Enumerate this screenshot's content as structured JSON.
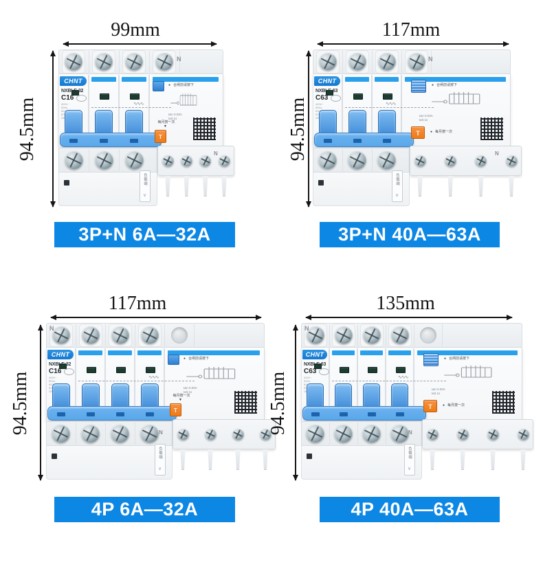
{
  "colors": {
    "banner_blue": "#0d87e4",
    "accent_blue": "#2aa0ec",
    "logo_blue": "#1478cf",
    "handle_blue": "#5aa8ea",
    "test_orange": "#ee7b17",
    "dimension_black": "#151515"
  },
  "shared": {
    "brand": "CHNT",
    "height_label": "94.5mm",
    "neutral_label": "N",
    "load_side_tag": "负载端",
    "reset_note": "合闸前请按下",
    "test_note": "每月按一次",
    "leakage_current": "IΔn 0.03A",
    "trip_time": "I≤0.1s",
    "test_button_label": "T",
    "specs": [
      "400V~",
      "50Hz",
      "6000A",
      "IEC61009-1",
      "GB/T16917.1"
    ]
  },
  "products": [
    {
      "banner": "3P+N 6A—32A",
      "width_label": "99mm",
      "model": "NXBLE-32",
      "rating": "C16",
      "poles": 3,
      "type": "3P+N",
      "rcd_style": "flat"
    },
    {
      "banner": "3P+N 40A—63A",
      "width_label": "117mm",
      "model": "NXBLE-63",
      "rating": "C63",
      "poles": 3,
      "type": "3P+N",
      "rcd_style": "ribbed"
    },
    {
      "banner": "4P 6A—32A",
      "width_label": "117mm",
      "model": "NXBLE-32",
      "rating": "C16",
      "poles": 4,
      "type": "4P",
      "rcd_style": "flat"
    },
    {
      "banner": "4P 40A—63A",
      "width_label": "135mm",
      "model": "NXBLE-63",
      "rating": "C63",
      "poles": 4,
      "type": "4P",
      "rcd_style": "ribbed"
    }
  ]
}
